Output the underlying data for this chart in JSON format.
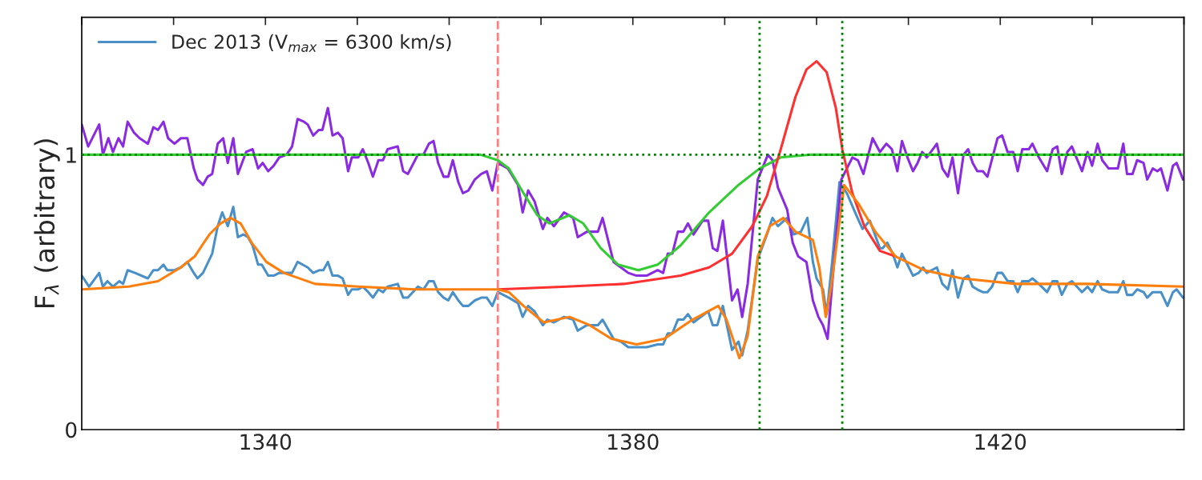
{
  "chart_data": {
    "type": "line",
    "ylabel": "F$_{λ}$ (arbitrary)",
    "xlim": [
      1320,
      1440
    ],
    "ylim": [
      0,
      1.5
    ],
    "xticks": [
      {
        "value": 1320,
        "label": null
      },
      {
        "value": 1330,
        "label": null
      },
      1340,
      {
        "value": 1350,
        "label": null
      },
      {
        "value": 1360,
        "label": null
      },
      {
        "value": 1370,
        "label": null
      },
      1380,
      {
        "value": 1390,
        "label": null
      },
      {
        "value": 1400,
        "label": null
      },
      {
        "value": 1410,
        "label": null
      },
      1420,
      {
        "value": 1430,
        "label": null
      },
      {
        "value": 1440,
        "label": null
      }
    ],
    "yticks": [
      0,
      1
    ],
    "grid": false,
    "legend": "top left",
    "line_style": "solid",
    "marker": "none",
    "series": [
      {
        "name": "Dec 2013 (V$_{max}$ = 6300 km/s)",
        "color": "#4a90c8",
        "x": [
          1320.0,
          1320.8,
          1321.9,
          1322.3,
          1322.8,
          1323.4,
          1324.1,
          1324.5,
          1325.0,
          1325.8,
          1327.2,
          1327.8,
          1328.3,
          1328.9,
          1329.3,
          1330.1,
          1330.8,
          1331.5,
          1332.2,
          1332.6,
          1333.2,
          1334.2,
          1334.8,
          1335.3,
          1335.9,
          1336.5,
          1337.0,
          1337.6,
          1338.1,
          1338.6,
          1339.2,
          1339.6,
          1340.3,
          1340.9,
          1341.5,
          1342.9,
          1343.5,
          1344.6,
          1345.2,
          1345.9,
          1346.3,
          1346.8,
          1347.3,
          1347.9,
          1348.4,
          1349.0,
          1349.4,
          1350.1,
          1350.6,
          1351.2,
          1351.7,
          1352.3,
          1352.8,
          1353.3,
          1354.4,
          1355.0,
          1355.5,
          1356.6,
          1357.2,
          1357.8,
          1358.3,
          1358.8,
          1359.4,
          1359.9,
          1360.4,
          1361.0,
          1361.5,
          1362.1,
          1362.8,
          1363.5,
          1364.1,
          1364.7,
          1365.3,
          1366.5,
          1367.5,
          1368.0,
          1368.6,
          1369.3,
          1370.2,
          1370.7,
          1371.4,
          1372.5,
          1373.5,
          1374.0,
          1375.0,
          1376.2,
          1376.7,
          1377.9,
          1378.7,
          1379.5,
          1380.4,
          1381.5,
          1382.7,
          1383.3,
          1383.8,
          1384.3,
          1384.9,
          1385.5,
          1386.0,
          1386.6,
          1388.2,
          1388.7,
          1389.2,
          1389.8,
          1390.8,
          1391.5,
          1391.9,
          1392.5,
          1393.6,
          1394.6,
          1395.2,
          1395.8,
          1396.8,
          1397.5,
          1398.3,
          1399.0,
          1399.6,
          1400.0,
          1400.7,
          1401.1,
          1401.7,
          1402.5,
          1403.3,
          1404.2,
          1405.0,
          1405.8,
          1406.9,
          1407.2,
          1407.7,
          1408.3,
          1408.8,
          1409.3,
          1410.5,
          1411.1,
          1411.6,
          1412.0,
          1413.1,
          1413.7,
          1414.3,
          1414.8,
          1415.4,
          1416.0,
          1416.5,
          1417.0,
          1417.5,
          1418.1,
          1418.6,
          1419.1,
          1419.7,
          1420.2,
          1420.8,
          1421.4,
          1421.9,
          1422.4,
          1423.1,
          1423.5,
          1424.2,
          1425.1,
          1425.7,
          1426.2,
          1426.7,
          1427.3,
          1427.8,
          1428.9,
          1429.5,
          1430.0,
          1430.6,
          1431.1,
          1431.8,
          1432.8,
          1433.4,
          1433.8,
          1434.4,
          1434.9,
          1435.6,
          1436.0,
          1436.6,
          1437.1,
          1437.5,
          1438.2,
          1438.8,
          1439.2,
          1439.9
        ],
        "values": [
          0.56,
          0.52,
          0.57,
          0.52,
          0.54,
          0.52,
          0.54,
          0.53,
          0.58,
          0.57,
          0.55,
          0.58,
          0.58,
          0.6,
          0.58,
          0.58,
          0.59,
          0.61,
          0.57,
          0.55,
          0.57,
          0.64,
          0.74,
          0.79,
          0.74,
          0.81,
          0.7,
          0.71,
          0.7,
          0.67,
          0.6,
          0.6,
          0.56,
          0.56,
          0.57,
          0.57,
          0.61,
          0.59,
          0.57,
          0.58,
          0.58,
          0.61,
          0.56,
          0.56,
          0.55,
          0.49,
          0.51,
          0.51,
          0.52,
          0.5,
          0.48,
          0.51,
          0.5,
          0.52,
          0.53,
          0.48,
          0.48,
          0.52,
          0.51,
          0.54,
          0.54,
          0.5,
          0.48,
          0.47,
          0.5,
          0.47,
          0.45,
          0.45,
          0.47,
          0.48,
          0.48,
          0.45,
          0.5,
          0.48,
          0.46,
          0.41,
          0.45,
          0.43,
          0.38,
          0.4,
          0.39,
          0.41,
          0.4,
          0.36,
          0.38,
          0.38,
          0.4,
          0.33,
          0.32,
          0.3,
          0.3,
          0.3,
          0.31,
          0.31,
          0.35,
          0.35,
          0.4,
          0.4,
          0.42,
          0.39,
          0.43,
          0.38,
          0.38,
          0.45,
          0.29,
          0.32,
          0.27,
          0.36,
          0.62,
          0.71,
          0.77,
          0.74,
          0.77,
          0.71,
          0.72,
          0.77,
          0.61,
          0.55,
          0.51,
          0.42,
          0.61,
          0.9,
          0.86,
          0.79,
          0.73,
          0.76,
          0.66,
          0.66,
          0.68,
          0.64,
          0.59,
          0.64,
          0.56,
          0.57,
          0.59,
          0.57,
          0.59,
          0.53,
          0.51,
          0.58,
          0.48,
          0.55,
          0.56,
          0.52,
          0.51,
          0.5,
          0.5,
          0.52,
          0.57,
          0.57,
          0.54,
          0.54,
          0.5,
          0.54,
          0.54,
          0.55,
          0.53,
          0.5,
          0.54,
          0.54,
          0.49,
          0.53,
          0.54,
          0.5,
          0.52,
          0.5,
          0.54,
          0.51,
          0.5,
          0.5,
          0.54,
          0.49,
          0.49,
          0.51,
          0.5,
          0.48,
          0.5,
          0.5,
          0.5,
          0.45,
          0.5,
          0.51,
          0.48
        ]
      },
      {
        "color": "#8a2be2",
        "x": [
          1320.0,
          1320.7,
          1321.9,
          1322.3,
          1322.9,
          1323.4,
          1324.0,
          1324.5,
          1325.0,
          1325.7,
          1326.3,
          1327.2,
          1327.8,
          1328.3,
          1328.9,
          1329.4,
          1330.1,
          1330.8,
          1331.5,
          1332.2,
          1332.6,
          1333.2,
          1333.7,
          1334.2,
          1334.8,
          1335.4,
          1335.9,
          1336.5,
          1337.0,
          1337.9,
          1338.6,
          1339.2,
          1339.7,
          1340.3,
          1340.9,
          1341.5,
          1342.3,
          1342.9,
          1343.5,
          1344.2,
          1344.6,
          1345.2,
          1345.8,
          1346.2,
          1346.8,
          1347.3,
          1347.9,
          1348.4,
          1349.0,
          1349.4,
          1350.1,
          1350.6,
          1351.2,
          1351.7,
          1352.3,
          1352.8,
          1353.3,
          1354.4,
          1355.0,
          1355.5,
          1356.6,
          1357.2,
          1357.8,
          1358.3,
          1358.8,
          1359.4,
          1359.9,
          1360.4,
          1361.0,
          1361.5,
          1362.1,
          1362.8,
          1363.5,
          1364.1,
          1364.7,
          1365.3,
          1366.4,
          1367.5,
          1368.0,
          1368.6,
          1369.3,
          1370.2,
          1370.7,
          1371.4,
          1372.5,
          1373.5,
          1374.0,
          1375.0,
          1376.2,
          1376.7,
          1377.9,
          1378.7,
          1379.5,
          1380.4,
          1381.5,
          1382.7,
          1383.3,
          1383.8,
          1384.3,
          1384.9,
          1385.5,
          1386.0,
          1386.6,
          1387.6,
          1388.2,
          1388.7,
          1389.2,
          1389.8,
          1390.8,
          1391.4,
          1391.9,
          1392.5,
          1393.6,
          1394.7,
          1395.2,
          1395.8,
          1396.8,
          1397.4,
          1398.0,
          1398.9,
          1399.6,
          1400.2,
          1400.7,
          1401.2,
          1401.8,
          1402.7,
          1403.9,
          1404.5,
          1405.1,
          1406.1,
          1406.9,
          1407.6,
          1408.2,
          1408.8,
          1409.3,
          1409.9,
          1410.5,
          1411.0,
          1411.5,
          1412.0,
          1413.1,
          1413.7,
          1414.3,
          1414.8,
          1415.4,
          1416.0,
          1416.5,
          1417.0,
          1417.5,
          1418.1,
          1418.6,
          1419.7,
          1420.2,
          1420.8,
          1421.4,
          1421.9,
          1422.4,
          1423.1,
          1423.5,
          1424.2,
          1425.1,
          1425.7,
          1426.2,
          1426.7,
          1427.3,
          1427.8,
          1428.9,
          1429.5,
          1430.0,
          1430.6,
          1431.1,
          1431.8,
          1432.8,
          1433.4,
          1433.8,
          1434.4,
          1434.9,
          1435.6,
          1436.0,
          1436.6,
          1437.1,
          1437.5,
          1438.2,
          1438.8,
          1439.2,
          1439.9
        ],
        "values": [
          1.11,
          1.03,
          1.11,
          1.0,
          1.06,
          1.01,
          1.06,
          1.03,
          1.12,
          1.08,
          1.06,
          1.04,
          1.1,
          1.09,
          1.12,
          1.06,
          1.04,
          1.06,
          1.06,
          0.95,
          0.91,
          0.89,
          0.92,
          0.93,
          1.04,
          1.06,
          0.97,
          1.06,
          0.93,
          1.01,
          1.02,
          0.95,
          0.97,
          0.94,
          0.96,
          0.99,
          1.0,
          1.03,
          1.13,
          1.12,
          1.11,
          1.07,
          1.09,
          1.09,
          1.17,
          1.07,
          1.08,
          1.06,
          0.94,
          0.99,
          0.99,
          1.02,
          0.97,
          0.92,
          0.98,
          0.98,
          1.02,
          1.03,
          0.94,
          0.93,
          1.0,
          1.0,
          1.04,
          1.05,
          0.97,
          0.92,
          0.92,
          0.98,
          0.9,
          0.86,
          0.87,
          0.91,
          0.93,
          0.94,
          0.87,
          0.97,
          0.95,
          0.89,
          0.79,
          0.87,
          0.83,
          0.73,
          0.77,
          0.74,
          0.79,
          0.77,
          0.7,
          0.72,
          0.72,
          0.77,
          0.61,
          0.59,
          0.57,
          0.56,
          0.56,
          0.58,
          0.57,
          0.64,
          0.64,
          0.72,
          0.72,
          0.75,
          0.71,
          0.76,
          0.76,
          0.66,
          0.65,
          0.76,
          0.47,
          0.51,
          0.41,
          0.53,
          0.91,
          1.0,
          0.98,
          0.88,
          0.8,
          0.68,
          0.63,
          0.61,
          0.47,
          0.41,
          0.38,
          0.33,
          0.57,
          0.91,
          0.99,
          0.98,
          0.93,
          1.06,
          1.01,
          1.04,
          1.02,
          0.94,
          1.05,
          0.99,
          0.94,
          0.97,
          1.01,
          0.99,
          1.04,
          0.95,
          0.92,
          0.99,
          0.86,
          1.0,
          1.02,
          0.97,
          0.94,
          0.94,
          0.92,
          1.06,
          1.07,
          1.01,
          1.01,
          0.94,
          1.02,
          1.02,
          1.04,
          0.99,
          0.94,
          1.02,
          1.03,
          0.93,
          1.01,
          1.03,
          0.94,
          1.01,
          0.96,
          1.04,
          0.98,
          0.95,
          0.95,
          1.04,
          0.93,
          0.93,
          0.98,
          0.97,
          0.91,
          0.95,
          0.94,
          0.95,
          0.87,
          0.96,
          0.97,
          0.91
        ]
      },
      {
        "color": "#33cc33",
        "x": [
          1320.0,
          1360.0,
          1363.4,
          1365.3,
          1366.5,
          1368.1,
          1369.6,
          1370.9,
          1373.1,
          1374.6,
          1376.5,
          1378.4,
          1380.6,
          1382.7,
          1385.2,
          1388.3,
          1391.5,
          1393.8,
          1396.1,
          1399.2,
          1407.0,
          1440.0
        ],
        "values": [
          1.0,
          1.0,
          1.0,
          0.98,
          0.95,
          0.86,
          0.78,
          0.75,
          0.78,
          0.75,
          0.66,
          0.6,
          0.58,
          0.6,
          0.67,
          0.79,
          0.89,
          0.95,
          0.99,
          1.0,
          1.0,
          1.0
        ]
      },
      {
        "color": "#ff3030",
        "x": [
          1365.3,
          1372.8,
          1379.0,
          1385.2,
          1388.3,
          1390.8,
          1393.0,
          1394.6,
          1396.1,
          1397.7,
          1398.9,
          1400.0,
          1401.1,
          1402.1,
          1402.8,
          1403.9,
          1405.2,
          1406.9,
          1408.6
        ],
        "values": [
          0.51,
          0.52,
          0.53,
          0.56,
          0.59,
          0.64,
          0.74,
          0.85,
          1.02,
          1.21,
          1.31,
          1.34,
          1.3,
          1.17,
          1.02,
          0.86,
          0.74,
          0.65,
          0.63
        ]
      },
      {
        "color": "#ff7f0e",
        "x": [
          1320.0,
          1325.1,
          1328.3,
          1330.8,
          1332.3,
          1333.9,
          1335.1,
          1336.2,
          1337.3,
          1338.5,
          1340.1,
          1342.0,
          1345.4,
          1350.1,
          1356.3,
          1365.3,
          1366.5,
          1368.1,
          1370.3,
          1373.1,
          1375.3,
          1377.7,
          1380.4,
          1383.4,
          1386.5,
          1389.3,
          1390.2,
          1391.6,
          1392.5,
          1393.6,
          1394.9,
          1396.4,
          1397.7,
          1399.6,
          1400.3,
          1401.0,
          1401.6,
          1403.0,
          1404.6,
          1406.4,
          1408.6,
          1411.7,
          1415.8,
          1421.7,
          1429.5,
          1439.9
        ],
        "values": [
          0.51,
          0.52,
          0.54,
          0.59,
          0.63,
          0.71,
          0.75,
          0.77,
          0.75,
          0.68,
          0.61,
          0.57,
          0.53,
          0.52,
          0.51,
          0.51,
          0.5,
          0.45,
          0.39,
          0.41,
          0.38,
          0.33,
          0.31,
          0.33,
          0.4,
          0.45,
          0.4,
          0.26,
          0.34,
          0.63,
          0.74,
          0.77,
          0.72,
          0.69,
          0.59,
          0.41,
          0.52,
          0.89,
          0.82,
          0.72,
          0.63,
          0.58,
          0.55,
          0.53,
          0.53,
          0.52
        ]
      }
    ],
    "ref_lines": [
      {
        "axis": "x",
        "value": 1365.3,
        "color": "#ff7f7f",
        "line_style": "dashed"
      },
      {
        "axis": "x",
        "value": 1393.8,
        "color": "#008000",
        "line_style": "dotted"
      },
      {
        "axis": "x",
        "value": 1402.8,
        "color": "#008000",
        "line_style": "dotted"
      },
      {
        "axis": "y",
        "value": 1,
        "color": "#008000",
        "line_style": "dotted"
      }
    ]
  }
}
